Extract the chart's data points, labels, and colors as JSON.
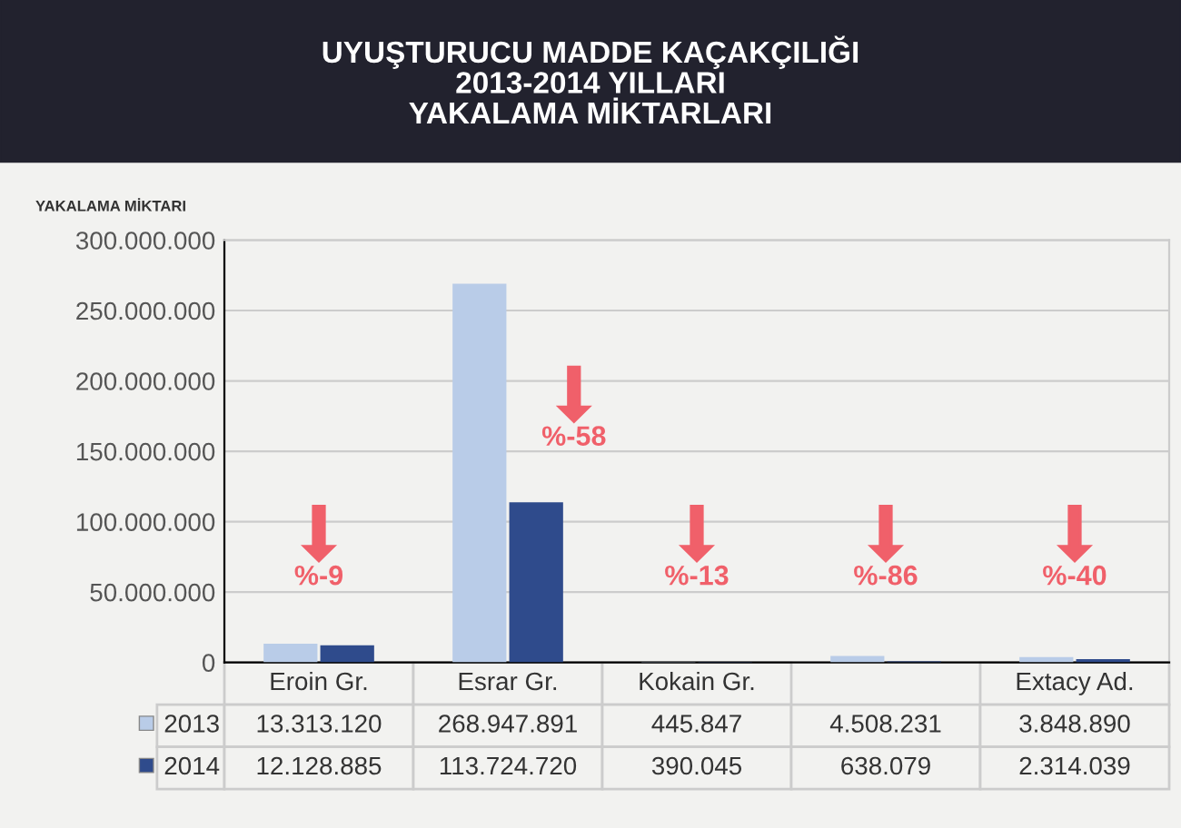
{
  "chart_data": {
    "type": "bar",
    "title": "UYUŞTURUCU MADDE KAÇAKÇILIĞI\n2013-2014 YILLARI\nYAKALAMA MİKTARLARI",
    "ylabel": "YAKALAMA MİKTARI",
    "categories": [
      "Eroin Gr.",
      "Esrar Gr.",
      "Kokain Gr.",
      null,
      "Extacy Ad."
    ],
    "series": [
      {
        "name": "2013",
        "color": "#b9cce8",
        "values": [
          13313120,
          268947891,
          445847,
          4508231,
          3848890
        ],
        "value_labels": [
          "13.313.120",
          "268.947.891",
          "445.847",
          "4.508.231",
          "3.848.890"
        ]
      },
      {
        "name": "2014",
        "color": "#2f4b8c",
        "values": [
          12128885,
          113724720,
          390045,
          638079,
          2314039
        ],
        "value_labels": [
          "12.128.885",
          "113.724.720",
          "390.045",
          "638.079",
          "2.314.039"
        ]
      }
    ],
    "ylim": [
      0,
      300000000
    ],
    "yticks": [
      {
        "value": 0,
        "label": "0"
      },
      {
        "value": 50000000,
        "label": "50.000.000"
      },
      {
        "value": 100000000,
        "label": "100.000.000"
      },
      {
        "value": 150000000,
        "label": "150.000.000"
      },
      {
        "value": 200000000,
        "label": "200.000.000"
      },
      {
        "value": 250000000,
        "label": "250.000.000"
      },
      {
        "value": 300000000,
        "label": "300.000.000"
      }
    ],
    "grid": "y",
    "legend": "bottom",
    "annotations": [
      "%-9",
      "%-58",
      "%-13",
      "%-86",
      "%-40"
    ]
  }
}
